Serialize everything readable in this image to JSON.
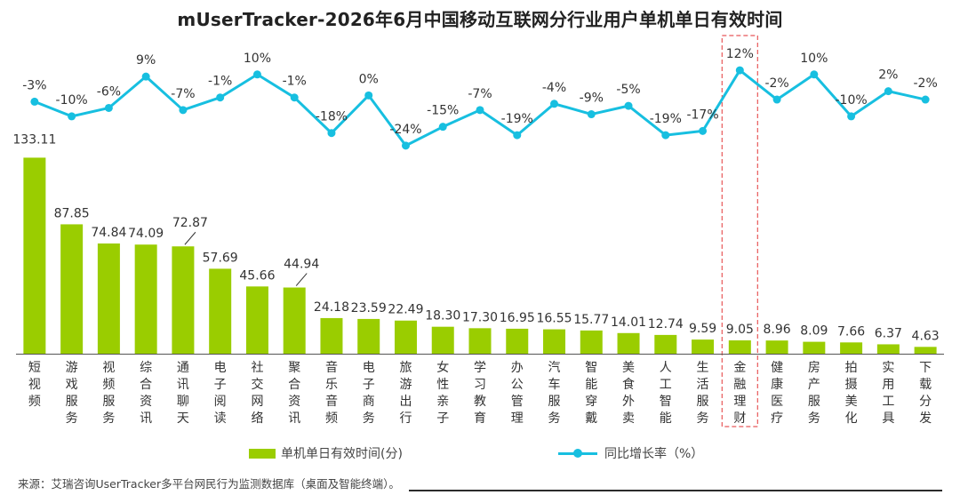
{
  "title": "mUserTracker-2026年6月中国移动互联网分行业用户单机单日有效时间",
  "colors": {
    "bar": "#9acd00",
    "line": "#17bfe0",
    "highlight": "#e8585a",
    "axis": "#555555"
  },
  "legend": {
    "bar_label": "单机单日有效时间(分)",
    "line_label": "同比增长率（%）"
  },
  "source": "来源：艾瑞咨询UserTracker多平台网民行为监测数据库（桌面及智能终端）。",
  "chart_data": {
    "type": "bar",
    "title": "mUserTracker-2026年6月中国移动互联网分行业用户单机单日有效时间",
    "categories": [
      "短视频",
      "游戏服务",
      "视频服务",
      "综合资讯",
      "通讯聊天",
      "电子阅读",
      "社交网络",
      "聚合资讯",
      "音乐音频",
      "电子商务",
      "旅游出行",
      "女性亲子",
      "学习教育",
      "办公管理",
      "汽车服务",
      "智能穿戴",
      "美食外卖",
      "人工智能",
      "生活服务",
      "金融理财",
      "健康医疗",
      "房产服务",
      "拍摄美化",
      "实用工具",
      "下载分发"
    ],
    "series": [
      {
        "name": "单机单日有效时间(分)",
        "type": "bar",
        "values": [
          133.11,
          87.85,
          74.84,
          74.09,
          72.87,
          57.69,
          45.66,
          44.94,
          24.18,
          23.59,
          22.49,
          18.3,
          17.3,
          16.95,
          16.55,
          15.77,
          14.01,
          12.74,
          9.59,
          9.05,
          8.96,
          8.09,
          7.66,
          6.37,
          4.63
        ],
        "labels": [
          "133.11",
          "87.85",
          "74.84",
          "74.09",
          "72.87",
          "57.69",
          "45.66",
          "44.94",
          "24.18",
          "23.59",
          "22.49",
          "18.30",
          "17.30",
          "16.95",
          "16.55",
          "15.77",
          "14.01",
          "12.74",
          "9.59",
          "9.05",
          "8.96",
          "8.09",
          "7.66",
          "6.37",
          "4.63"
        ]
      },
      {
        "name": "同比增长率（%）",
        "type": "line",
        "values": [
          -3,
          -10,
          -6,
          9,
          -7,
          -1,
          10,
          -1,
          -18,
          0,
          -24,
          -15,
          -7,
          -19,
          -4,
          -9,
          -5,
          -19,
          -17,
          12,
          -2,
          10,
          -10,
          2,
          -2
        ],
        "labels": [
          "-3%",
          "-10%",
          "-6%",
          "9%",
          "-7%",
          "-1%",
          "10%",
          "-1%",
          "-18%",
          "0%",
          "-24%",
          "-15%",
          "-7%",
          "-19%",
          "-4%",
          "-9%",
          "-5%",
          "-19%",
          "-17%",
          "12%",
          "-2%",
          "10%",
          "-10%",
          "2%",
          "-2%"
        ]
      }
    ],
    "highlight_category": "金融理财",
    "ylim_bar": [
      0,
      140
    ],
    "ylim_line": [
      -30,
      15
    ],
    "grid": false,
    "legend_position": "bottom"
  }
}
